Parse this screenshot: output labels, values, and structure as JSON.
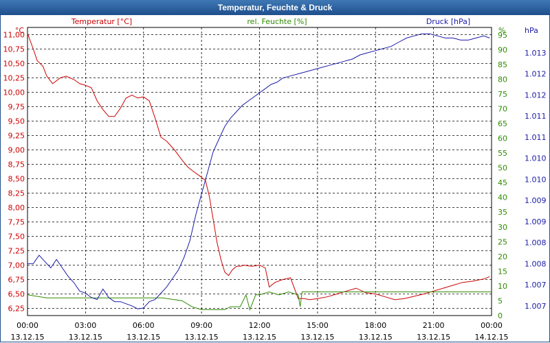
{
  "window": {
    "title": "Temperatur, Feuchte & Druck"
  },
  "chart_data": {
    "type": "line",
    "title": "Temperatur, Feuchte & Druck",
    "x_ticks": [
      {
        "hour": 0,
        "time": "00:00",
        "date": "13.12.15"
      },
      {
        "hour": 3,
        "time": "03:00",
        "date": "13.12.15"
      },
      {
        "hour": 6,
        "time": "06:00",
        "date": "13.12.15"
      },
      {
        "hour": 9,
        "time": "09:00",
        "date": "13.12.15"
      },
      {
        "hour": 12,
        "time": "12:00",
        "date": "13.12.15"
      },
      {
        "hour": 15,
        "time": "15:00",
        "date": "13.12.15"
      },
      {
        "hour": 18,
        "time": "18:00",
        "date": "13.12.15"
      },
      {
        "hour": 21,
        "time": "21:00",
        "date": "13.12.15"
      },
      {
        "hour": 24,
        "time": "00:00",
        "date": "14.12.15"
      }
    ],
    "xlim": [
      0,
      24
    ],
    "axes": {
      "temperature": {
        "label": "Temperatur [°C]",
        "unit": "°C",
        "color": "#cc0000",
        "ylim": [
          6.125,
          11.125
        ],
        "ticks": [
          "6,25",
          "6,50",
          "6,75",
          "7,00",
          "7,25",
          "7,50",
          "7,75",
          "8,00",
          "8,25",
          "8,50",
          "8,75",
          "9,00",
          "9,25",
          "9,50",
          "9,75",
          "10,00",
          "10,25",
          "10,50",
          "10,75",
          "11,00"
        ],
        "tick_values": [
          6.25,
          6.5,
          6.75,
          7.0,
          7.25,
          7.5,
          7.75,
          8.0,
          8.25,
          8.5,
          8.75,
          9.0,
          9.25,
          9.5,
          9.75,
          10.0,
          10.25,
          10.5,
          10.75,
          11.0
        ]
      },
      "humidity": {
        "label": "rel. Feuchte [%]",
        "unit": "%",
        "color": "#2e8b00",
        "ylim": [
          0,
          97.5
        ],
        "ticks": [
          "0",
          "5",
          "10",
          "15",
          "20",
          "25",
          "30",
          "35",
          "40",
          "45",
          "50",
          "55",
          "60",
          "65",
          "70",
          "75",
          "80",
          "85",
          "90",
          "95"
        ],
        "tick_values": [
          0,
          5,
          10,
          15,
          20,
          25,
          30,
          35,
          40,
          45,
          50,
          55,
          60,
          65,
          70,
          75,
          80,
          85,
          90,
          95
        ]
      },
      "pressure": {
        "label": "Druck [hPa]",
        "unit": "hPa",
        "color": "#1a1aa8",
        "ylim": [
          1006.52,
          1013.35
        ],
        "ticks": [
          "1.007",
          "1.007",
          "1.008",
          "1.008",
          "1.009",
          "1.009",
          "1.010",
          "1.010",
          "1.011",
          "1.011",
          "1.012",
          "1.012",
          "1.013"
        ],
        "tick_values": [
          1006.75,
          1007.25,
          1007.75,
          1008.25,
          1008.75,
          1009.25,
          1009.75,
          1010.25,
          1010.75,
          1011.25,
          1011.75,
          1012.25,
          1012.75
        ]
      }
    },
    "series": [
      {
        "name": "Temperatur",
        "axis": "temperature",
        "color": "#cc0000",
        "x": [
          0,
          0.3,
          0.5,
          0.8,
          1.0,
          1.3,
          1.7,
          2.0,
          2.4,
          2.7,
          3.0,
          3.3,
          3.6,
          3.9,
          4.2,
          4.5,
          4.8,
          5.1,
          5.4,
          5.7,
          6.0,
          6.3,
          6.6,
          6.9,
          7.2,
          7.6,
          8.0,
          8.3,
          8.6,
          8.9,
          9.2,
          9.4,
          9.6,
          9.8,
          10.0,
          10.2,
          10.4,
          10.6,
          10.8,
          11.0,
          11.2,
          11.6,
          12.0,
          12.3,
          12.5,
          12.8,
          13.2,
          13.6,
          14.0,
          14.3,
          14.6,
          15.0,
          15.5,
          16.0,
          16.5,
          17.0,
          17.5,
          18.0,
          18.5,
          19.0,
          19.5,
          20.0,
          20.5,
          21.0,
          21.5,
          22.0,
          22.5,
          23.0,
          23.3,
          23.6,
          23.9
        ],
        "values": [
          11.02,
          10.75,
          10.55,
          10.45,
          10.28,
          10.15,
          10.25,
          10.28,
          10.22,
          10.15,
          10.12,
          10.08,
          9.85,
          9.7,
          9.58,
          9.58,
          9.72,
          9.9,
          9.95,
          9.9,
          9.92,
          9.85,
          9.55,
          9.22,
          9.15,
          9.0,
          8.82,
          8.7,
          8.62,
          8.55,
          8.47,
          8.2,
          7.8,
          7.4,
          7.1,
          6.88,
          6.82,
          6.92,
          6.98,
          6.98,
          7.0,
          6.98,
          7.0,
          6.95,
          6.62,
          6.7,
          6.75,
          6.78,
          6.42,
          6.42,
          6.4,
          6.42,
          6.45,
          6.5,
          6.55,
          6.6,
          6.52,
          6.5,
          6.45,
          6.4,
          6.42,
          6.46,
          6.5,
          6.55,
          6.6,
          6.65,
          6.7,
          6.72,
          6.74,
          6.76,
          6.8
        ]
      },
      {
        "name": "rel. Feuchte",
        "axis": "humidity",
        "color": "#2e8b00",
        "x": [
          0,
          1,
          2,
          3,
          4,
          5,
          6,
          7,
          8,
          8.5,
          9,
          9.5,
          10,
          10.2,
          10.5,
          11,
          11.3,
          11.5,
          11.8,
          12,
          12.5,
          13,
          13.5,
          14,
          14.1,
          14.2,
          14.5,
          15,
          16,
          17,
          18,
          19,
          20,
          21,
          22,
          23,
          24
        ],
        "values": [
          7,
          6,
          6,
          6,
          6,
          6,
          6,
          6,
          5,
          3,
          2,
          2,
          2,
          2,
          3,
          3,
          7,
          2,
          7,
          7,
          8,
          7,
          8,
          7,
          3,
          8,
          8,
          8,
          8,
          8,
          8,
          8,
          8,
          8,
          8,
          8,
          8
        ]
      },
      {
        "name": "Druck",
        "axis": "pressure",
        "color": "#1a1aa8",
        "x": [
          0,
          0.3,
          0.6,
          0.9,
          1.2,
          1.5,
          1.8,
          2.1,
          2.4,
          2.7,
          3.0,
          3.3,
          3.6,
          3.9,
          4.2,
          4.5,
          4.8,
          5.1,
          5.4,
          5.7,
          6.0,
          6.3,
          6.6,
          6.9,
          7.2,
          7.5,
          7.8,
          8.1,
          8.4,
          8.7,
          9.0,
          9.3,
          9.6,
          9.9,
          10.2,
          10.5,
          10.8,
          11.1,
          11.4,
          11.7,
          12.0,
          12.3,
          12.6,
          12.9,
          13.2,
          13.6,
          14.0,
          14.4,
          14.8,
          15.2,
          15.6,
          16.0,
          16.4,
          16.8,
          17.2,
          17.6,
          18.0,
          18.4,
          18.8,
          19.2,
          19.6,
          20.0,
          20.4,
          20.8,
          21.2,
          21.6,
          22.0,
          22.4,
          22.8,
          23.2,
          23.6,
          23.9
        ],
        "values": [
          1007.75,
          1007.75,
          1007.95,
          1007.8,
          1007.65,
          1007.85,
          1007.65,
          1007.45,
          1007.3,
          1007.1,
          1007.05,
          1006.95,
          1006.9,
          1007.15,
          1006.95,
          1006.85,
          1006.85,
          1006.8,
          1006.75,
          1006.68,
          1006.7,
          1006.85,
          1006.9,
          1007.05,
          1007.2,
          1007.4,
          1007.6,
          1007.9,
          1008.3,
          1008.9,
          1009.4,
          1009.9,
          1010.4,
          1010.7,
          1011.0,
          1011.2,
          1011.35,
          1011.5,
          1011.6,
          1011.7,
          1011.8,
          1011.9,
          1012.0,
          1012.05,
          1012.15,
          1012.2,
          1012.25,
          1012.3,
          1012.35,
          1012.4,
          1012.45,
          1012.5,
          1012.55,
          1012.6,
          1012.7,
          1012.75,
          1012.8,
          1012.85,
          1012.9,
          1013.0,
          1013.1,
          1013.15,
          1013.2,
          1013.2,
          1013.15,
          1013.1,
          1013.1,
          1013.05,
          1013.05,
          1013.1,
          1013.15,
          1013.1
        ]
      }
    ]
  }
}
